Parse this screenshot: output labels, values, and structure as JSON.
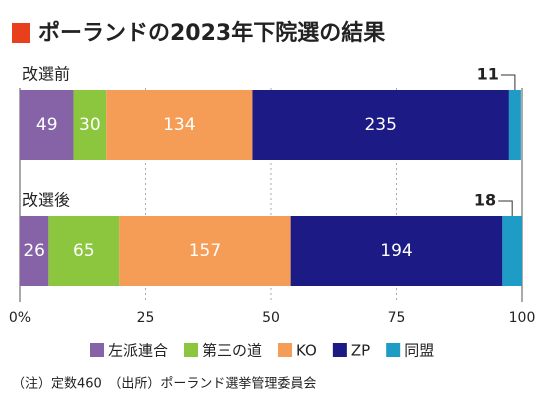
{
  "chart_data": {
    "type": "stacked-barh",
    "title": "ポーランドの2023年下院選の結果",
    "categories": [
      "改選前",
      "改選後"
    ],
    "series": [
      {
        "name": "左派連合",
        "color": "#8563a6",
        "values": [
          49,
          26
        ]
      },
      {
        "name": "第三の道",
        "color": "#8cc63f",
        "values": [
          30,
          65
        ]
      },
      {
        "name": "KO",
        "color": "#f59d56",
        "values": [
          134,
          157
        ]
      },
      {
        "name": "ZP",
        "color": "#1c1a85",
        "values": [
          235,
          194
        ]
      },
      {
        "name": "同盟",
        "color": "#1f9cc6",
        "values": [
          11,
          18
        ]
      }
    ],
    "xlim": [
      0,
      460
    ],
    "xticks": [
      {
        "value": 0,
        "label": "0%"
      },
      {
        "value": 115,
        "label": "25"
      },
      {
        "value": 230,
        "label": "50"
      },
      {
        "value": 345,
        "label": "75"
      },
      {
        "value": 460,
        "label": "100"
      }
    ],
    "grid": true,
    "legend": "bottom",
    "note": "（注）定数460　（出所）ポーランド選挙管理委員会"
  }
}
